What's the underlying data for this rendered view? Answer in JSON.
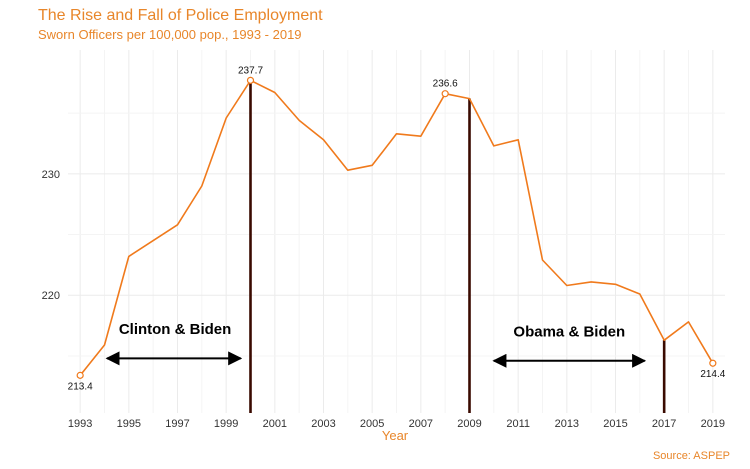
{
  "chart_data": {
    "type": "line",
    "title": "The Rise and Fall of Police Employment",
    "subtitle": "Sworn Officers per 100,000 pop., 1993 - 2019",
    "xlabel": "Year",
    "ylabel": "",
    "caption": "Source: ASPEP",
    "xlim": [
      1992.5,
      2019.5
    ],
    "ylim": [
      210.3,
      240.2
    ],
    "x_ticks": [
      "1993",
      "1995",
      "1997",
      "1999",
      "2001",
      "2003",
      "2005",
      "2007",
      "2009",
      "2011",
      "2013",
      "2015",
      "2017",
      "2019"
    ],
    "y_ticks": [
      "220",
      "230"
    ],
    "grid": true,
    "line_color": "#f07a1c",
    "series": [
      {
        "x": [
          1993,
          1994,
          1995,
          1996,
          1997,
          1998,
          1999,
          2000,
          2001,
          2002,
          2003,
          2004,
          2005,
          2006,
          2007,
          2008,
          2009,
          2010,
          2011,
          2012,
          2013,
          2014,
          2015,
          2016,
          2017,
          2018,
          2019
        ],
        "values": [
          213.4,
          215.9,
          223.2,
          224.5,
          225.8,
          229.0,
          234.6,
          237.7,
          236.7,
          234.4,
          232.8,
          230.3,
          230.7,
          233.3,
          233.1,
          236.6,
          236.2,
          232.3,
          232.8,
          222.9,
          220.8,
          221.1,
          220.9,
          220.1,
          216.3,
          217.8,
          214.4
        ]
      }
    ],
    "labeled_points": [
      {
        "x": 1993,
        "y": 213.4,
        "label": "213.4"
      },
      {
        "x": 2000,
        "y": 237.7,
        "label": "237.7"
      },
      {
        "x": 2008,
        "y": 236.6,
        "label": "236.6"
      },
      {
        "x": 2019,
        "y": 214.4,
        "label": "214.4"
      }
    ],
    "vertical_lines": [
      2000,
      2009,
      2017
    ],
    "annotations": [
      {
        "text": "Clinton & Biden",
        "x_start": 1994.1,
        "x_end": 1999.6,
        "arrow_y": 214.8,
        "text_x": 1996.9,
        "text_y": 216.8
      },
      {
        "text": "Obama & Biden",
        "x_start": 2010.0,
        "x_end": 2016.2,
        "arrow_y": 214.6,
        "text_x": 2013.1,
        "text_y": 216.6
      }
    ]
  }
}
